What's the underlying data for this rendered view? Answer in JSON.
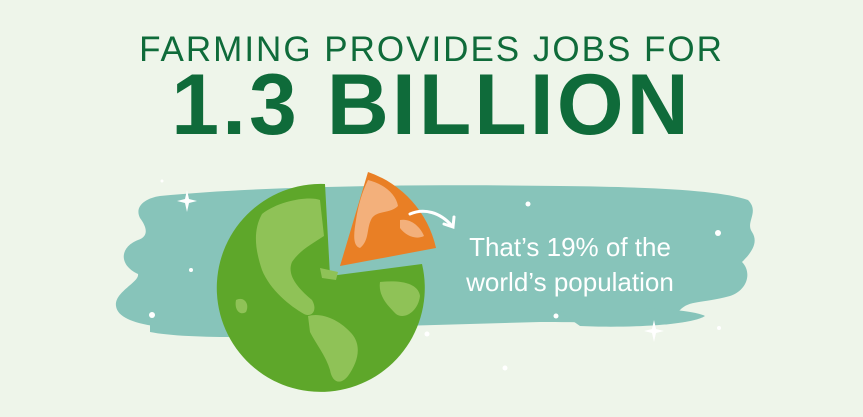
{
  "headline": {
    "line1": "FARMING PROVIDES JOBS FOR",
    "line2": "1.3 BILLION"
  },
  "caption": {
    "line1": "That’s 19% of the",
    "line2": "world’s population"
  },
  "share_of_population_percent": 19,
  "colors": {
    "background": "#eef5ea",
    "headline": "#0f6b3a",
    "brush_band": "#87c4ba",
    "globe_ocean": "#5ea72a",
    "globe_land": "#8fc257",
    "slice": "#e97f25",
    "slice_land": "#f3b07b"
  },
  "icons": [
    "globe-icon",
    "pie-slice-icon",
    "curved-arrow-icon",
    "sparkle-icon"
  ]
}
